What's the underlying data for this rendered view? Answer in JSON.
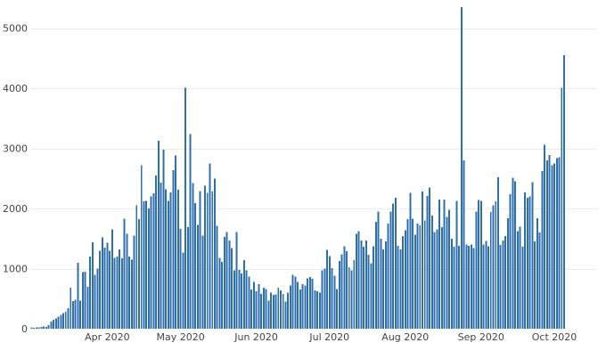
{
  "chart_data": {
    "type": "bar",
    "title": "",
    "xlabel": "",
    "ylabel": "",
    "x_start": "2020-03-01",
    "x_end": "2020-10-18",
    "ylim": [
      0,
      5350
    ],
    "grid": true,
    "legend": "none",
    "bar_color": "#2e6fae",
    "yticks": [
      0,
      1000,
      2000,
      3000,
      4000,
      5000
    ],
    "xticks": [
      {
        "date": "2020-04-01",
        "label": "Apr 2020"
      },
      {
        "date": "2020-05-01",
        "label": "May 2020"
      },
      {
        "date": "2020-06-01",
        "label": "Jun 2020"
      },
      {
        "date": "2020-07-01",
        "label": "Jul 2020"
      },
      {
        "date": "2020-08-01",
        "label": "Aug 2020"
      },
      {
        "date": "2020-09-01",
        "label": "Sep 2020"
      },
      {
        "date": "2020-10-01",
        "label": "Oct 2020"
      }
    ],
    "series": [
      {
        "values": [
          20,
          15,
          20,
          25,
          30,
          35,
          30,
          60,
          120,
          150,
          170,
          200,
          230,
          260,
          280,
          340,
          680,
          460,
          480,
          1100,
          470,
          940,
          950,
          700,
          1200,
          1440,
          900,
          1000,
          1300,
          1520,
          1350,
          1430,
          1300,
          1650,
          1180,
          1200,
          1320,
          1170,
          1830,
          1580,
          1200,
          1150,
          1550,
          2050,
          1820,
          2720,
          2120,
          2130,
          2000,
          2200,
          2250,
          2550,
          3130,
          2430,
          2980,
          2320,
          2130,
          2270,
          2640,
          2880,
          2310,
          1660,
          1270,
          4010,
          1690,
          3240,
          2420,
          2090,
          1730,
          2290,
          1550,
          2380,
          2260,
          2750,
          2280,
          2500,
          1710,
          1180,
          1110,
          1530,
          1610,
          1470,
          1340,
          970,
          1610,
          980,
          920,
          1140,
          970,
          870,
          650,
          780,
          620,
          740,
          580,
          680,
          660,
          470,
          600,
          560,
          570,
          680,
          640,
          580,
          450,
          600,
          720,
          900,
          870,
          780,
          650,
          740,
          720,
          840,
          860,
          830,
          640,
          620,
          600,
          970,
          1000,
          1310,
          1210,
          1010,
          880,
          660,
          1130,
          1240,
          1370,
          1290,
          1020,
          970,
          1140,
          1580,
          1620,
          1470,
          1360,
          1470,
          1230,
          1090,
          1370,
          1780,
          1950,
          1500,
          1320,
          1450,
          1750,
          1950,
          2080,
          2180,
          1380,
          1320,
          1540,
          1640,
          1820,
          2260,
          1830,
          1560,
          1750,
          1720,
          2280,
          1800,
          2210,
          2350,
          1880,
          1610,
          1650,
          2150,
          1690,
          2150,
          1860,
          1980,
          1500,
          1360,
          2130,
          1380,
          5350,
          2800,
          1400,
          1380,
          1400,
          1340,
          1950,
          2140,
          2130,
          1400,
          1460,
          1370,
          1940,
          2050,
          2120,
          2520,
          1390,
          1470,
          1540,
          1840,
          2240,
          2510,
          2450,
          1620,
          1700,
          1360,
          2270,
          2180,
          2200,
          2440,
          1450,
          1840,
          1600,
          2620,
          3060,
          2800,
          2890,
          2720,
          2750,
          2840,
          2850,
          4010,
          4550
        ]
      }
    ]
  }
}
